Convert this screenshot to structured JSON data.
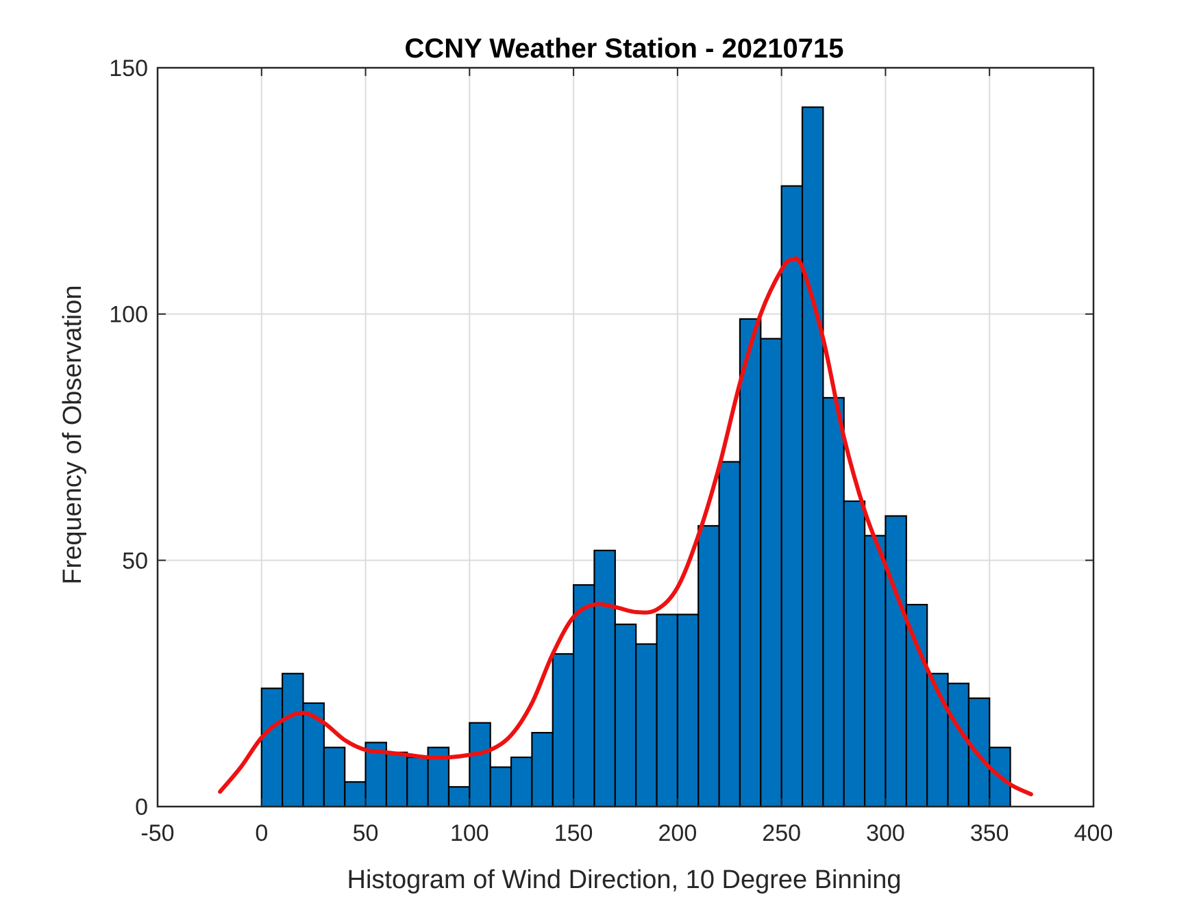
{
  "chart_data": {
    "type": "bar",
    "title": "CCNY Weather Station - 20210715",
    "xlabel": "Histogram of Wind Direction, 10 Degree Binning",
    "ylabel": "Frequency of Observation",
    "xlim": [
      -50,
      400
    ],
    "ylim": [
      0,
      150
    ],
    "xticks": [
      -50,
      0,
      50,
      100,
      150,
      200,
      250,
      300,
      350,
      400
    ],
    "yticks": [
      0,
      50,
      100,
      150
    ],
    "xtick_labels": [
      "-50",
      "0",
      "50",
      "100",
      "150",
      "200",
      "250",
      "300",
      "350",
      "400"
    ],
    "ytick_labels": [
      "0",
      "50",
      "100",
      "150"
    ],
    "grid": true,
    "bin_width": 10,
    "bin_starts": [
      0,
      10,
      20,
      30,
      40,
      50,
      60,
      70,
      80,
      90,
      100,
      110,
      120,
      130,
      140,
      150,
      160,
      170,
      180,
      190,
      200,
      210,
      220,
      230,
      240,
      250,
      260,
      270,
      280,
      290,
      300,
      310,
      320,
      330,
      340,
      350
    ],
    "values": [
      24,
      27,
      21,
      12,
      5,
      13,
      11,
      10,
      12,
      4,
      17,
      8,
      10,
      15,
      31,
      45,
      52,
      37,
      33,
      39,
      39,
      57,
      70,
      99,
      95,
      126,
      142,
      83,
      62,
      55,
      59,
      41,
      27,
      25,
      22,
      12
    ],
    "fit_curve": {
      "x": [
        -20,
        -10,
        0,
        10,
        20,
        30,
        40,
        50,
        60,
        70,
        80,
        90,
        100,
        110,
        120,
        130,
        140,
        150,
        160,
        170,
        180,
        190,
        200,
        210,
        220,
        230,
        240,
        250,
        255,
        260,
        270,
        280,
        290,
        300,
        310,
        320,
        330,
        340,
        350,
        360,
        370
      ],
      "y": [
        3,
        8,
        14,
        17.5,
        19,
        17,
        13.5,
        11.5,
        11,
        10.5,
        10,
        10,
        10.5,
        11.5,
        14.5,
        21,
        31,
        38.5,
        41,
        40.5,
        39.5,
        40,
        44.5,
        55,
        69,
        86,
        100,
        109,
        111,
        109.5,
        95,
        75,
        60,
        49,
        38,
        28,
        19.5,
        13,
        8,
        4.5,
        2.5
      ],
      "color": "#ee1111"
    },
    "bar_color": "#0072bd"
  }
}
